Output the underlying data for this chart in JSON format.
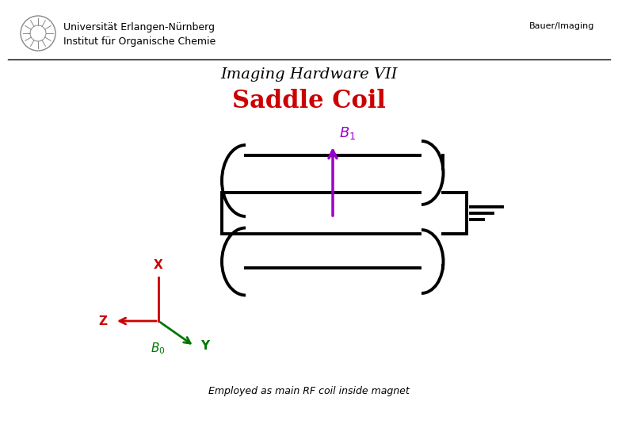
{
  "title1": "Imaging Hardware VII",
  "title2": "Saddle Coil",
  "header_line1": "Universität Erlangen-Nürnberg",
  "header_line2": "Institut für Organische Chemie",
  "header_right": "Bauer/Imaging",
  "footer": "Employed as main RF coil inside magnet",
  "title1_fontsize": 14,
  "title2_fontsize": 22,
  "title2_color": "#cc0000",
  "bg_color": "#ffffff",
  "coil_color": "#000000",
  "b1_color": "#9900cc",
  "axis_x_color": "#cc0000",
  "axis_y_color": "#007700",
  "axis_z_color": "#cc0000",
  "b0_color": "#007700",
  "lw": 2.8
}
